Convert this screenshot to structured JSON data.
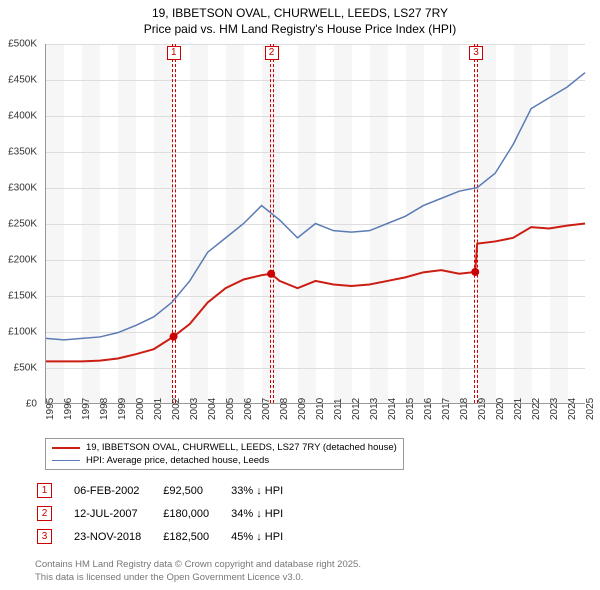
{
  "title": {
    "line1": "19, IBBETSON OVAL, CHURWELL, LEEDS, LS27 7RY",
    "line2": "Price paid vs. HM Land Registry's House Price Index (HPI)"
  },
  "chart": {
    "type": "line",
    "x_start_year": 1995,
    "x_end_year": 2025,
    "x_ticks": [
      1995,
      1996,
      1997,
      1998,
      1999,
      2000,
      2001,
      2002,
      2003,
      2004,
      2005,
      2006,
      2007,
      2008,
      2009,
      2010,
      2011,
      2012,
      2013,
      2014,
      2015,
      2016,
      2017,
      2018,
      2019,
      2020,
      2021,
      2022,
      2023,
      2024,
      2025
    ],
    "y_min": 0,
    "y_max": 500000,
    "y_ticks": [
      0,
      50000,
      100000,
      150000,
      200000,
      250000,
      300000,
      350000,
      400000,
      450000,
      500000
    ],
    "y_tick_labels": [
      "£0",
      "£50K",
      "£100K",
      "£150K",
      "£200K",
      "£250K",
      "£300K",
      "£350K",
      "£400K",
      "£450K",
      "£500K"
    ],
    "background_color": "#ffffff",
    "grid_color": "#dddddd",
    "series": [
      {
        "name": "red",
        "color": "#cc1d13",
        "width": 2,
        "points": [
          [
            1995,
            58000
          ],
          [
            1996,
            58000
          ],
          [
            1997,
            58000
          ],
          [
            1998,
            59000
          ],
          [
            1999,
            62000
          ],
          [
            2000,
            68000
          ],
          [
            2001,
            75000
          ],
          [
            2002.1,
            92500
          ],
          [
            2003,
            110000
          ],
          [
            2004,
            140000
          ],
          [
            2005,
            160000
          ],
          [
            2006,
            172000
          ],
          [
            2007,
            178000
          ],
          [
            2007.53,
            180000
          ],
          [
            2008,
            170000
          ],
          [
            2009,
            160000
          ],
          [
            2010,
            170000
          ],
          [
            2011,
            165000
          ],
          [
            2012,
            163000
          ],
          [
            2013,
            165000
          ],
          [
            2014,
            170000
          ],
          [
            2015,
            175000
          ],
          [
            2016,
            182000
          ],
          [
            2017,
            185000
          ],
          [
            2018,
            180000
          ],
          [
            2018.89,
            182500
          ],
          [
            2019,
            222000
          ],
          [
            2020,
            225000
          ],
          [
            2021,
            230000
          ],
          [
            2022,
            245000
          ],
          [
            2023,
            243000
          ],
          [
            2024,
            247000
          ],
          [
            2025,
            250000
          ]
        ]
      },
      {
        "name": "blue",
        "color": "#5b7bb5",
        "width": 1.5,
        "points": [
          [
            1995,
            90000
          ],
          [
            1996,
            88000
          ],
          [
            1997,
            90000
          ],
          [
            1998,
            92000
          ],
          [
            1999,
            98000
          ],
          [
            2000,
            108000
          ],
          [
            2001,
            120000
          ],
          [
            2002,
            140000
          ],
          [
            2003,
            170000
          ],
          [
            2004,
            210000
          ],
          [
            2005,
            230000
          ],
          [
            2006,
            250000
          ],
          [
            2007,
            275000
          ],
          [
            2008,
            255000
          ],
          [
            2009,
            230000
          ],
          [
            2010,
            250000
          ],
          [
            2011,
            240000
          ],
          [
            2012,
            238000
          ],
          [
            2013,
            240000
          ],
          [
            2014,
            250000
          ],
          [
            2015,
            260000
          ],
          [
            2016,
            275000
          ],
          [
            2017,
            285000
          ],
          [
            2018,
            295000
          ],
          [
            2019,
            300000
          ],
          [
            2020,
            320000
          ],
          [
            2021,
            360000
          ],
          [
            2022,
            410000
          ],
          [
            2023,
            425000
          ],
          [
            2024,
            440000
          ],
          [
            2025,
            460000
          ]
        ]
      }
    ],
    "markers": [
      {
        "n": "1",
        "x": 2002.1,
        "y": 92500
      },
      {
        "n": "2",
        "x": 2007.53,
        "y": 180000
      },
      {
        "n": "3",
        "x": 2018.89,
        "y": 182500
      }
    ]
  },
  "legend": {
    "items": [
      {
        "color": "#cc1d13",
        "width": 2,
        "label": "19, IBBETSON OVAL, CHURWELL, LEEDS, LS27 7RY (detached house)"
      },
      {
        "color": "#5b7bb5",
        "width": 1.5,
        "label": "HPI: Average price, detached house, Leeds"
      }
    ]
  },
  "events": [
    {
      "n": "1",
      "date": "06-FEB-2002",
      "price": "£92,500",
      "delta": "33% ↓ HPI"
    },
    {
      "n": "2",
      "date": "12-JUL-2007",
      "price": "£180,000",
      "delta": "34% ↓ HPI"
    },
    {
      "n": "3",
      "date": "23-NOV-2018",
      "price": "£182,500",
      "delta": "45% ↓ HPI"
    }
  ],
  "footer": {
    "line1": "Contains HM Land Registry data © Crown copyright and database right 2025.",
    "line2": "This data is licensed under the Open Government Licence v3.0."
  }
}
